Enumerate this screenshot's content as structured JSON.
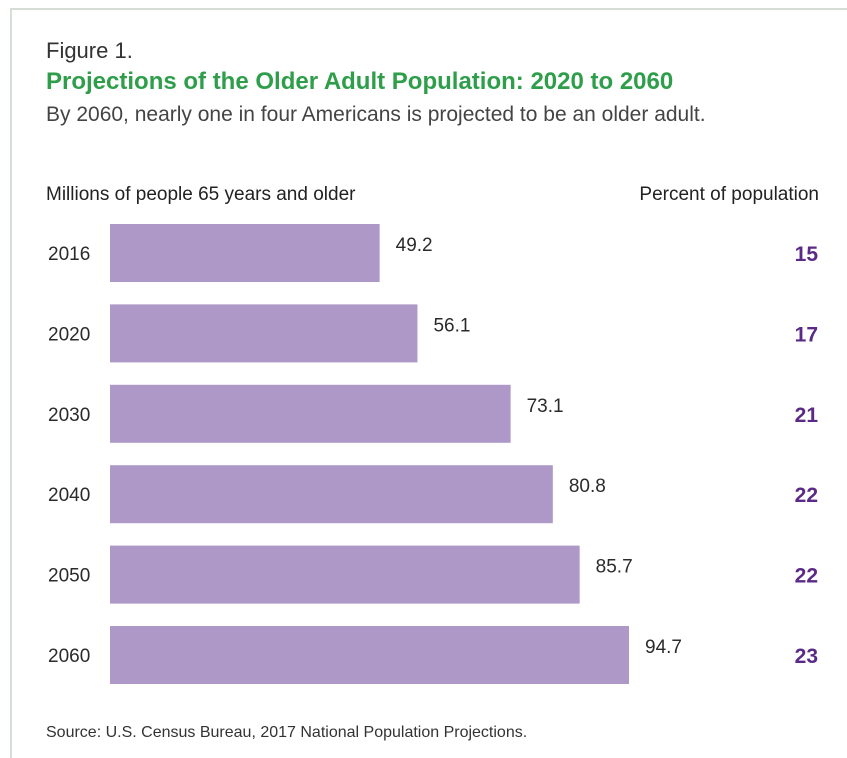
{
  "figure_label": "Figure 1.",
  "title": "Projections of the Older Adult Population: 2020 to 2060",
  "subtitle": "By 2060, nearly one in four Americans is projected to be an older adult.",
  "left_header": "Millions of people 65 years and older",
  "right_header": "Percent of population",
  "source": "Source: U.S. Census Bureau, 2017 National Population Projections.",
  "colors": {
    "title": "#2e9e4a",
    "bar": "#ae98c8",
    "percent": "#5b2a86",
    "border": "#d6ddd6"
  },
  "chart_data": {
    "type": "bar",
    "orientation": "horizontal",
    "categories": [
      "2016",
      "2020",
      "2030",
      "2040",
      "2050",
      "2060"
    ],
    "series": [
      {
        "values": [
          49.2,
          56.1,
          73.1,
          80.8,
          85.7,
          94.7
        ]
      }
    ],
    "percent_of_population": [
      "15",
      "17",
      "21",
      "22",
      "22",
      "23"
    ],
    "xlim": [
      0,
      94.7
    ],
    "grid": false,
    "legend": "none"
  }
}
